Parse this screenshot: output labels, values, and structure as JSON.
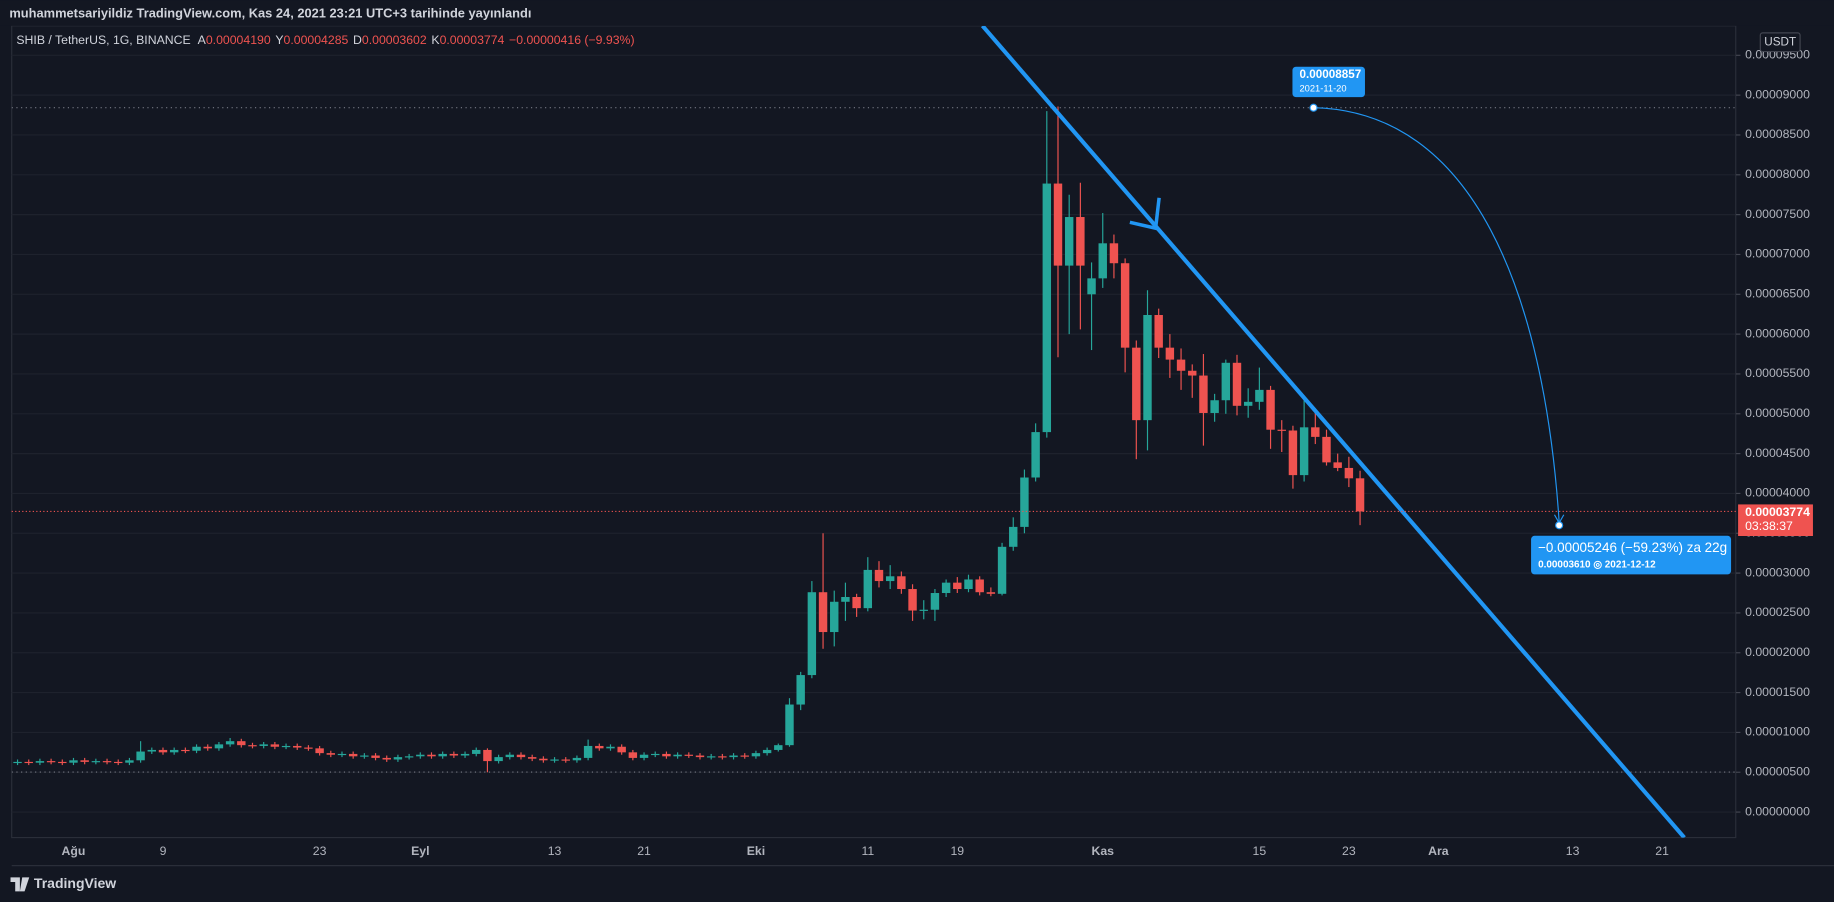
{
  "header": "muhammetsariyildiz TradingView.com, Kas 24, 2021 23:21 UTC+3 tarihinde yayınlandı",
  "symbol": "SHIB / TetherUS, 1G, BINANCE",
  "ohlc_legend": [
    {
      "label": "A",
      "value": "0.00004190"
    },
    {
      "label": "Y",
      "value": "0.00004285"
    },
    {
      "label": "D",
      "value": "0.00003602"
    },
    {
      "label": "K",
      "value": "0.00003774"
    }
  ],
  "change": "−0.00000416 (−9.93%)",
  "currency": "USDT",
  "last_price_label": "0.00003774",
  "countdown": "03:38:37",
  "measure": {
    "start_price": "0.00008857",
    "start_date": "2021-11-20",
    "change": "−0.00005246 (−59.23%) za 22g",
    "end": "0.00003610 ◎ 2021-12-12"
  },
  "footer": "TradingView",
  "chart_data": {
    "type": "candlestick",
    "up_color": "#26a69a",
    "down_color": "#ef5350",
    "ylim": [
      -3.2e-06,
      9.87e-05
    ],
    "yticks": [
      {
        "value": 0,
        "label": "0.00000000"
      },
      {
        "value": 5e-06,
        "label": "0.00000500"
      },
      {
        "value": 1e-05,
        "label": "0.00001000"
      },
      {
        "value": 1.5e-05,
        "label": "0.00001500"
      },
      {
        "value": 2e-05,
        "label": "0.00002000"
      },
      {
        "value": 2.5e-05,
        "label": "0.00002500"
      },
      {
        "value": 3e-05,
        "label": "0.00003000"
      },
      {
        "value": 3.5e-05,
        "label": "0.00003500"
      },
      {
        "value": 4e-05,
        "label": "0.00004000"
      },
      {
        "value": 4.5e-05,
        "label": "0.00004500"
      },
      {
        "value": 5e-05,
        "label": "0.00005000"
      },
      {
        "value": 5.5e-05,
        "label": "0.00005500"
      },
      {
        "value": 6e-05,
        "label": "0.00006000"
      },
      {
        "value": 6.5e-05,
        "label": "0.00006500"
      },
      {
        "value": 7e-05,
        "label": "0.00007000"
      },
      {
        "value": 7.5e-05,
        "label": "0.00007500"
      },
      {
        "value": 8e-05,
        "label": "0.00008000"
      },
      {
        "value": 8.5e-05,
        "label": "0.00008500"
      },
      {
        "value": 9e-05,
        "label": "0.00009000"
      },
      {
        "value": 9.5e-05,
        "label": "0.00009500"
      }
    ],
    "grid": true,
    "categories": [
      null,
      null,
      null,
      null,
      null,
      "Ağu",
      null,
      null,
      null,
      null,
      null,
      null,
      null,
      "9",
      null,
      null,
      null,
      null,
      null,
      null,
      null,
      null,
      null,
      null,
      null,
      null,
      null,
      "23",
      null,
      null,
      null,
      null,
      null,
      null,
      null,
      null,
      "Eyl",
      null,
      null,
      null,
      null,
      null,
      null,
      null,
      null,
      null,
      null,
      null,
      "13",
      null,
      null,
      null,
      null,
      null,
      null,
      null,
      "21",
      null,
      null,
      null,
      null,
      null,
      null,
      null,
      null,
      null,
      "Eki",
      null,
      null,
      null,
      null,
      null,
      null,
      null,
      null,
      null,
      "11",
      null,
      null,
      null,
      null,
      null,
      null,
      null,
      "19",
      null,
      null,
      null,
      null,
      null,
      null,
      null,
      null,
      null,
      null,
      null,
      null,
      "Kas",
      null,
      null,
      null,
      null,
      null,
      null,
      null,
      null,
      null,
      null,
      null,
      null,
      null,
      "15",
      null,
      null,
      null,
      null,
      null,
      null,
      null,
      "23",
      null,
      null,
      null,
      null,
      null,
      null,
      null,
      "Ara",
      null,
      null,
      null,
      null,
      null,
      null,
      null,
      null,
      null,
      null,
      null,
      "13",
      null,
      null,
      null,
      null,
      null,
      null,
      null,
      "21",
      null,
      null,
      null,
      null,
      null,
      null
    ],
    "open": [
      6.2e-06,
      6.3e-06,
      6.2e-06,
      6.4e-06,
      6.3e-06,
      6.2e-06,
      6.5e-06,
      6.3e-06,
      6.4e-06,
      6.3e-06,
      6.2e-06,
      6.5e-06,
      7.6e-06,
      7.8e-06,
      7.5e-06,
      7.8e-06,
      7.7e-06,
      8.2e-06,
      8e-06,
      8.5e-06,
      8.9e-06,
      8.4e-06,
      8.3e-06,
      8.5e-06,
      8.2e-06,
      8.3e-06,
      8.1e-06,
      8e-06,
      7.4e-06,
      7.2e-06,
      7.3e-06,
      7e-06,
      7.1e-06,
      6.8e-06,
      6.6e-06,
      6.9e-06,
      7e-06,
      7.2e-06,
      7e-06,
      7.3e-06,
      7.1e-06,
      7.3e-06,
      7.8e-06,
      6.4e-06,
      6.9e-06,
      7.2e-06,
      6.9e-06,
      6.7e-06,
      6.5e-06,
      6.6e-06,
      6.5e-06,
      6.8e-06,
      8.3e-06,
      8e-06,
      8.2e-06,
      7.5e-06,
      6.8e-06,
      7.2e-06,
      7.3e-06,
      7e-06,
      7.2e-06,
      7.1e-06,
      6.9e-06,
      7e-06,
      6.9e-06,
      7.1e-06,
      7e-06,
      7.4e-06,
      7.8e-06,
      8.4e-06,
      1.35e-05,
      1.72e-05,
      2.76e-05,
      2.26e-05,
      2.64e-05,
      2.7e-05,
      2.56e-05,
      3.04e-05,
      2.9e-05,
      2.96e-05,
      2.8e-05,
      2.53e-05,
      2.54e-05,
      2.75e-05,
      2.88e-05,
      2.8e-05,
      2.92e-05,
      2.76e-05,
      2.74e-05,
      3.33e-05,
      3.58e-05,
      4.2e-05,
      4.77e-05,
      7.89e-05,
      6.86e-05,
      7.47e-05,
      6.5e-05,
      6.7e-05,
      7.14e-05,
      6.89e-05,
      5.83e-05,
      4.92e-05,
      6.24e-05,
      5.83e-05,
      5.68e-05,
      5.54e-05,
      5.48e-05,
      5.01e-05,
      5.17e-05,
      5.64e-05,
      5.1e-05,
      5.15e-05,
      5.3e-05,
      4.8e-05,
      4.79e-05,
      4.23e-05,
      4.83e-05,
      4.71e-05,
      4.39e-05,
      4.32e-05,
      4.19e-05,
      null,
      null,
      null,
      null,
      null,
      null,
      null,
      null,
      null,
      null,
      null,
      null,
      null,
      null,
      null,
      null,
      null,
      null,
      null,
      null,
      null,
      null,
      null,
      null,
      null,
      null,
      null,
      null,
      null,
      null,
      null,
      null,
      null
    ],
    "high": [
      6.6e-06,
      6.6e-06,
      6.7e-06,
      6.7e-06,
      6.6e-06,
      6.8e-06,
      6.8e-06,
      6.7e-06,
      6.7e-06,
      6.6e-06,
      6.8e-06,
      8.9e-06,
      8.1e-06,
      8.1e-06,
      8.1e-06,
      8.1e-06,
      8.5e-06,
      8.5e-06,
      8.8e-06,
      9.3e-06,
      9.2e-06,
      8.7e-06,
      8.8e-06,
      8.8e-06,
      8.6e-06,
      8.6e-06,
      8.4e-06,
      8.3e-06,
      7.7e-06,
      7.6e-06,
      7.6e-06,
      7.4e-06,
      7.4e-06,
      7.1e-06,
      7.2e-06,
      7.3e-06,
      7.5e-06,
      7.5e-06,
      7.6e-06,
      7.6e-06,
      7.6e-06,
      8.1e-06,
      8e-06,
      7.2e-06,
      7.5e-06,
      7.5e-06,
      7.2e-06,
      7e-06,
      6.9e-06,
      6.9e-06,
      7.1e-06,
      9.1e-06,
      8.6e-06,
      8.5e-06,
      8.5e-06,
      7.8e-06,
      7.5e-06,
      7.6e-06,
      7.6e-06,
      7.5e-06,
      7.5e-06,
      7.4e-06,
      7.3e-06,
      7.3e-06,
      7.4e-06,
      7.4e-06,
      7.7e-06,
      8.1e-06,
      8.6e-06,
      1.43e-05,
      1.76e-05,
      2.9e-05,
      3.5e-05,
      2.78e-05,
      2.88e-05,
      2.74e-05,
      3.2e-05,
      3.15e-05,
      3.1e-05,
      3.02e-05,
      2.86e-05,
      2.66e-05,
      2.8e-05,
      2.92e-05,
      2.95e-05,
      2.98e-05,
      2.96e-05,
      2.82e-05,
      3.38e-05,
      3.7e-05,
      4.3e-05,
      4.88e-05,
      8.8e-05,
      8.857e-05,
      7.75e-05,
      7.9e-05,
      6.9e-05,
      7.52e-05,
      7.25e-05,
      6.95e-05,
      5.92e-05,
      6.55e-05,
      6.32e-05,
      6e-05,
      5.82e-05,
      5.62e-05,
      5.75e-05,
      5.25e-05,
      5.68e-05,
      5.74e-05,
      5.32e-05,
      5.58e-05,
      5.35e-05,
      4.92e-05,
      4.85e-05,
      5.23e-05,
      5.05e-05,
      4.8e-05,
      4.5e-05,
      4.46e-05,
      4.285e-05,
      null,
      null,
      null,
      null,
      null,
      null,
      null,
      null,
      null,
      null,
      null,
      null,
      null,
      null,
      null,
      null,
      null,
      null,
      null,
      null,
      null,
      null,
      null,
      null,
      null,
      null,
      null,
      null,
      null,
      null,
      null,
      null,
      null
    ],
    "low": [
      5.9e-06,
      5.9e-06,
      5.9e-06,
      6e-06,
      5.9e-06,
      5.9e-06,
      6e-06,
      6e-06,
      6e-06,
      5.9e-06,
      5.9e-06,
      6.2e-06,
      7.3e-06,
      7.2e-06,
      7.2e-06,
      7.4e-06,
      7.4e-06,
      7.7e-06,
      7.7e-06,
      8.2e-06,
      8.1e-06,
      8e-06,
      8e-06,
      7.9e-06,
      7.9e-06,
      7.8e-06,
      7.7e-06,
      7.1e-06,
      6.9e-06,
      6.9e-06,
      6.7e-06,
      6.7e-06,
      6.5e-06,
      6.3e-06,
      6.3e-06,
      6.6e-06,
      6.7e-06,
      6.7e-06,
      6.7e-06,
      6.8e-06,
      6.8e-06,
      7e-06,
      5e-06,
      6.1e-06,
      6.6e-06,
      6.6e-06,
      6.4e-06,
      6.2e-06,
      6.2e-06,
      6.2e-06,
      6.2e-06,
      6.5e-06,
      7.7e-06,
      7.7e-06,
      7.2e-06,
      6.5e-06,
      6.5e-06,
      6.9e-06,
      6.7e-06,
      6.7e-06,
      6.8e-06,
      6.6e-06,
      6.6e-06,
      6.6e-06,
      6.6e-06,
      6.7e-06,
      6.7e-06,
      7.1e-06,
      7.6e-06,
      8.2e-06,
      1.28e-05,
      1.68e-05,
      2.05e-05,
      2.08e-05,
      2.4e-05,
      2.45e-05,
      2.52e-05,
      2.82e-05,
      2.8e-05,
      2.74e-05,
      2.4e-05,
      2.42e-05,
      2.4e-05,
      2.7e-05,
      2.75e-05,
      2.76e-05,
      2.72e-05,
      2.71e-05,
      2.72e-05,
      3.28e-05,
      3.5e-05,
      4.15e-05,
      4.7e-05,
      5.71e-05,
      6e-05,
      6.06e-05,
      5.8e-05,
      6.58e-05,
      6.7e-05,
      5.52e-05,
      4.43e-05,
      4.54e-05,
      5.7e-05,
      5.45e-05,
      5.3e-05,
      5.2e-05,
      4.6e-05,
      4.9e-05,
      5e-05,
      4.98e-05,
      4.95e-05,
      5.05e-05,
      4.56e-05,
      4.52e-05,
      4.06e-05,
      4.15e-05,
      4.62e-05,
      4.35e-05,
      4.28e-05,
      4.08e-05,
      3.602e-05,
      null,
      null,
      null,
      null,
      null,
      null,
      null,
      null,
      null,
      null,
      null,
      null,
      null,
      null,
      null,
      null,
      null,
      null,
      null,
      null,
      null,
      null,
      null,
      null,
      null,
      null,
      null,
      null,
      null,
      null,
      null,
      null,
      null
    ],
    "close": [
      6.3e-06,
      6.2e-06,
      6.4e-06,
      6.3e-06,
      6.2e-06,
      6.5e-06,
      6.3e-06,
      6.4e-06,
      6.3e-06,
      6.2e-06,
      6.5e-06,
      7.6e-06,
      7.8e-06,
      7.5e-06,
      7.8e-06,
      7.7e-06,
      8.2e-06,
      8e-06,
      8.5e-06,
      8.9e-06,
      8.4e-06,
      8.3e-06,
      8.5e-06,
      8.2e-06,
      8.3e-06,
      8.1e-06,
      8e-06,
      7.4e-06,
      7.2e-06,
      7.3e-06,
      7e-06,
      7.1e-06,
      6.8e-06,
      6.6e-06,
      6.9e-06,
      7e-06,
      7.2e-06,
      7e-06,
      7.3e-06,
      7.1e-06,
      7.3e-06,
      7.8e-06,
      6.4e-06,
      6.9e-06,
      7.2e-06,
      6.9e-06,
      6.7e-06,
      6.5e-06,
      6.6e-06,
      6.5e-06,
      6.8e-06,
      8.3e-06,
      8e-06,
      8.2e-06,
      7.5e-06,
      6.8e-06,
      7.2e-06,
      7.3e-06,
      7e-06,
      7.2e-06,
      7.1e-06,
      6.9e-06,
      7e-06,
      6.9e-06,
      7.1e-06,
      7e-06,
      7.4e-06,
      7.8e-06,
      8.4e-06,
      1.35e-05,
      1.72e-05,
      2.76e-05,
      2.26e-05,
      2.64e-05,
      2.7e-05,
      2.56e-05,
      3.04e-05,
      2.9e-05,
      2.96e-05,
      2.8e-05,
      2.53e-05,
      2.54e-05,
      2.75e-05,
      2.88e-05,
      2.8e-05,
      2.92e-05,
      2.76e-05,
      2.74e-05,
      3.33e-05,
      3.58e-05,
      4.2e-05,
      4.77e-05,
      7.89e-05,
      6.86e-05,
      7.47e-05,
      6.86e-05,
      6.7e-05,
      7.14e-05,
      6.89e-05,
      5.83e-05,
      4.92e-05,
      6.24e-05,
      5.83e-05,
      5.68e-05,
      5.54e-05,
      5.48e-05,
      5.01e-05,
      5.17e-05,
      5.64e-05,
      5.1e-05,
      5.15e-05,
      5.3e-05,
      4.8e-05,
      4.79e-05,
      4.23e-05,
      4.83e-05,
      4.71e-05,
      4.39e-05,
      4.32e-05,
      4.19e-05,
      3.774e-05,
      null,
      null,
      null,
      null,
      null,
      null,
      null,
      null,
      null,
      null,
      null,
      null,
      null,
      null,
      null,
      null,
      null,
      null,
      null,
      null,
      null,
      null,
      null,
      null,
      null,
      null,
      null,
      null,
      null,
      null,
      null,
      null,
      null
    ]
  }
}
